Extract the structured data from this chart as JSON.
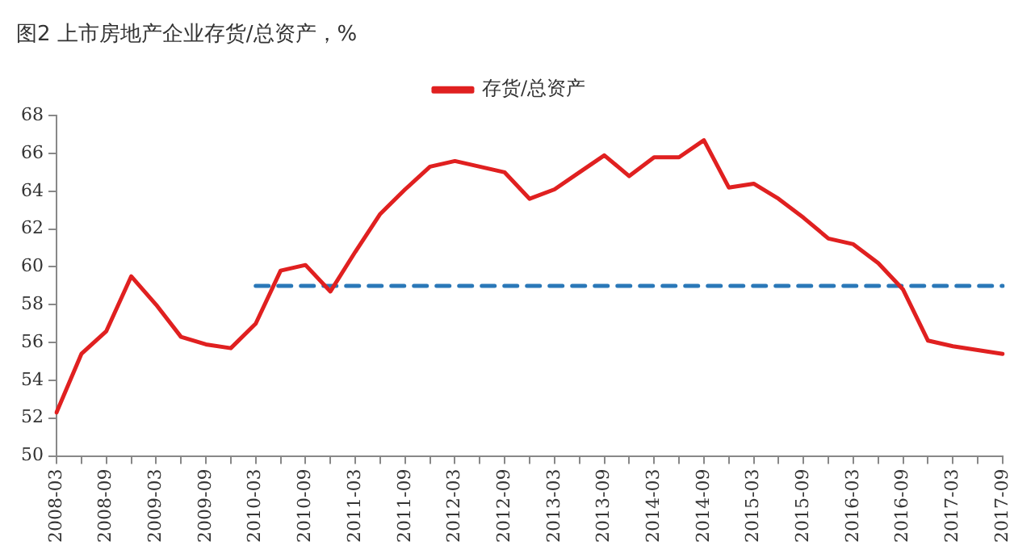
{
  "chart_data": {
    "type": "line",
    "title": "图2 上市房地产企业存货/总资产，%",
    "categories": [
      "2008-03",
      null,
      "2008-09",
      null,
      "2009-03",
      null,
      "2009-09",
      null,
      "2010-03",
      null,
      "2010-09",
      null,
      "2011-03",
      null,
      "2011-09",
      null,
      "2012-03",
      null,
      "2012-09",
      null,
      "2013-03",
      null,
      "2013-09",
      null,
      "2014-03",
      null,
      "2014-09",
      null,
      "2015-03",
      null,
      "2015-09",
      null,
      "2016-03",
      null,
      "2016-09",
      null,
      "2017-03",
      null,
      "2017-09"
    ],
    "series": [
      {
        "name": "存货/总资产",
        "color": "#e02020",
        "values": [
          52.3,
          55.4,
          56.6,
          59.5,
          58.0,
          56.3,
          55.9,
          55.7,
          57.0,
          59.8,
          60.1,
          58.7,
          60.8,
          62.8,
          64.1,
          65.3,
          65.6,
          65.3,
          65.0,
          63.6,
          64.1,
          65.0,
          65.9,
          64.8,
          65.8,
          65.8,
          66.7,
          64.2,
          64.4,
          63.6,
          62.6,
          61.5,
          61.2,
          60.2,
          58.8,
          56.1,
          55.8,
          55.6,
          55.4
        ]
      },
      {
        "color": "#2a78b8",
        "line_style": "dashed",
        "values": [
          null,
          null,
          null,
          null,
          null,
          null,
          null,
          null,
          59.0,
          59.0,
          59.0,
          59.0,
          59.0,
          59.0,
          59.0,
          59.0,
          59.0,
          59.0,
          59.0,
          59.0,
          59.0,
          59.0,
          59.0,
          59.0,
          59.0,
          59.0,
          59.0,
          59.0,
          59.0,
          59.0,
          59.0,
          59.0,
          59.0,
          59.0,
          59.0,
          59.0,
          59.0,
          59.0,
          59.0
        ]
      }
    ],
    "ylim": [
      50,
      68
    ],
    "yticks": [
      50,
      52,
      54,
      56,
      58,
      60,
      62,
      64,
      66,
      68
    ],
    "grid": false,
    "legend": "top",
    "marker": "none",
    "line_style": "solid"
  }
}
